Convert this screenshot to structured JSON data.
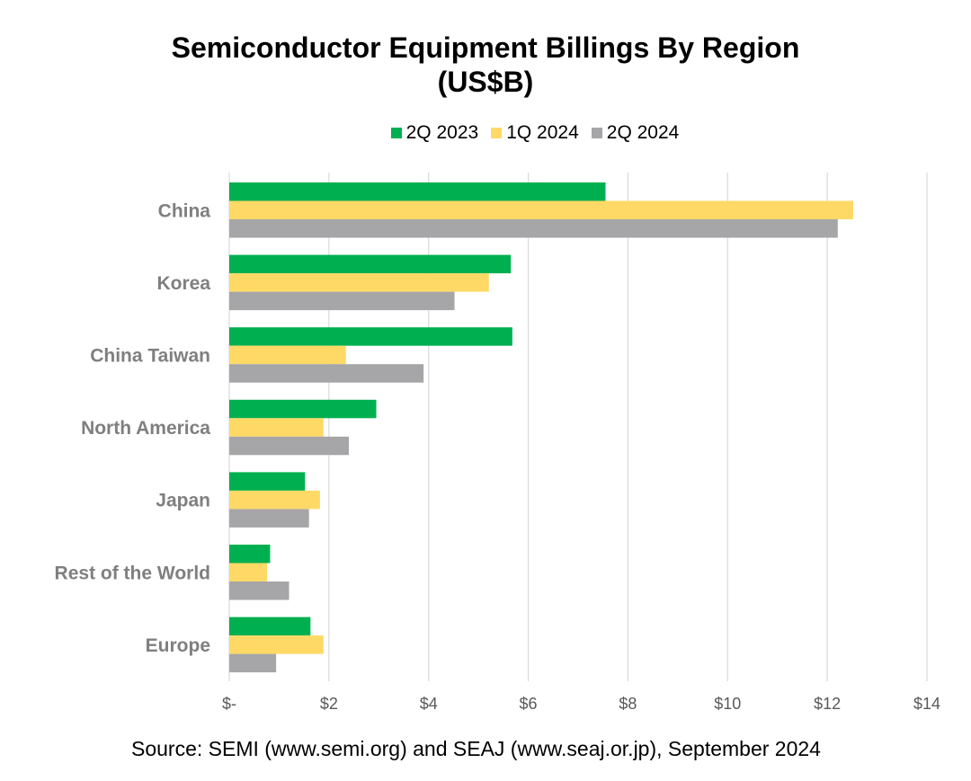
{
  "chart_data": {
    "type": "bar",
    "orientation": "horizontal",
    "title": "Semiconductor Equipment Billings By Region",
    "subtitle": "(US$B)",
    "categories": [
      "China",
      "Korea",
      "China Taiwan",
      "North America",
      "Japan",
      "Rest of the World",
      "Europe"
    ],
    "series": [
      {
        "name": "2Q 2023",
        "color": "#00B050",
        "values": [
          7.55,
          5.65,
          5.68,
          2.95,
          1.52,
          0.82,
          1.63
        ]
      },
      {
        "name": "1Q 2024",
        "color": "#FFD966",
        "values": [
          12.52,
          5.21,
          2.34,
          1.89,
          1.82,
          0.76,
          1.89
        ]
      },
      {
        "name": "2Q 2024",
        "color": "#A6A6A8",
        "values": [
          12.21,
          4.52,
          3.9,
          2.4,
          1.6,
          1.2,
          0.94
        ]
      }
    ],
    "xlim": [
      0,
      14
    ],
    "xticks": [
      0,
      2,
      4,
      6,
      8,
      10,
      12,
      14
    ],
    "xtick_labels": [
      "$-",
      "$2",
      "$4",
      "$6",
      "$8",
      "$10",
      "$12",
      "$14"
    ],
    "grid": "vertical",
    "legend_position": "top"
  },
  "source_note": "Source: SEMI (www.semi.org) and SEAJ (www.seaj.or.jp), September 2024"
}
